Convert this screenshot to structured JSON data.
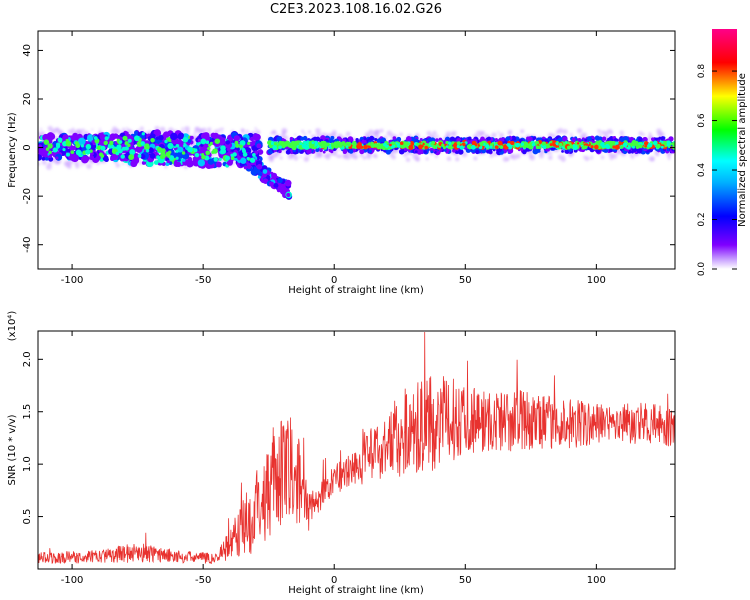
{
  "title": "C2E3.2023.108.16.02.G26",
  "colorbar": {
    "label": "Normalized spectral amplitude",
    "ticks": [
      "0.0",
      "0.2",
      "0.4",
      "0.6",
      "0.8"
    ],
    "tick_values": [
      0.0,
      0.2,
      0.4,
      0.6,
      0.8
    ],
    "range": [
      0.0,
      0.97
    ],
    "colormap": [
      "#ffffff",
      "#7f00ff",
      "#0000ff",
      "#00ffff",
      "#00ff00",
      "#ffff00",
      "#ff0000",
      "#ff00aa"
    ]
  },
  "chart_data": [
    {
      "type": "heatmap",
      "xlabel": "Height of straight line (km)",
      "ylabel": "Frequency (Hz)",
      "xlim": [
        -113,
        130
      ],
      "ylim": [
        -50,
        48
      ],
      "xticks": [
        -100,
        -50,
        0,
        50,
        100
      ],
      "xtick_labels": [
        "-100",
        "-50",
        "0",
        "50",
        "100"
      ],
      "yticks": [
        -40,
        -20,
        0,
        20,
        40
      ],
      "ytick_labels": [
        "-40",
        "-20",
        "0",
        "20",
        "40"
      ],
      "bands": [
        {
          "x_start": -113,
          "x_end": -28,
          "center_hz": 0,
          "halfwidth_hz": 5,
          "peak_amplitude": 0.6
        },
        {
          "x_start": -45,
          "x_end": -17,
          "start_hz": 3,
          "end_hz": -18,
          "peak_amplitude": 0.5
        },
        {
          "x_start": -25,
          "x_end": 130,
          "center_hz": 1,
          "halfwidth_hz": 3,
          "peak_amplitude": 0.9
        }
      ]
    },
    {
      "type": "line",
      "xlabel": "Height of straight line (km)",
      "ylabel": "SNR (10 * v/v)",
      "y_multiplier": "(x10⁴)",
      "xlim": [
        -113,
        130
      ],
      "ylim": [
        0,
        2.27
      ],
      "xticks": [
        -100,
        -50,
        0,
        50,
        100
      ],
      "xtick_labels": [
        "-100",
        "-50",
        "0",
        "50",
        "100"
      ],
      "yticks": [
        0.5,
        1.0,
        1.5,
        2.0
      ],
      "ytick_labels": [
        "0.5",
        "1.0",
        "1.5",
        "2.0"
      ],
      "color": "#e8322f",
      "series_envelope": {
        "x": [
          -113,
          -90,
          -75,
          -60,
          -45,
          -38,
          -30,
          -25,
          -20,
          -15,
          -10,
          -5,
          0,
          10,
          20,
          30,
          40,
          50,
          60,
          70,
          80,
          90,
          100,
          110,
          120,
          130
        ],
        "mean": [
          0.1,
          0.12,
          0.16,
          0.12,
          0.1,
          0.3,
          0.55,
          0.8,
          0.9,
          0.95,
          0.55,
          0.7,
          0.85,
          1.0,
          1.2,
          1.35,
          1.4,
          1.45,
          1.4,
          1.42,
          1.4,
          1.38,
          1.38,
          1.4,
          1.38,
          1.35
        ],
        "spread": [
          0.06,
          0.06,
          0.1,
          0.06,
          0.05,
          0.2,
          0.4,
          0.5,
          0.55,
          0.5,
          0.2,
          0.15,
          0.15,
          0.2,
          0.35,
          0.45,
          0.45,
          0.35,
          0.3,
          0.3,
          0.25,
          0.25,
          0.2,
          0.2,
          0.2,
          0.2
        ]
      }
    }
  ]
}
